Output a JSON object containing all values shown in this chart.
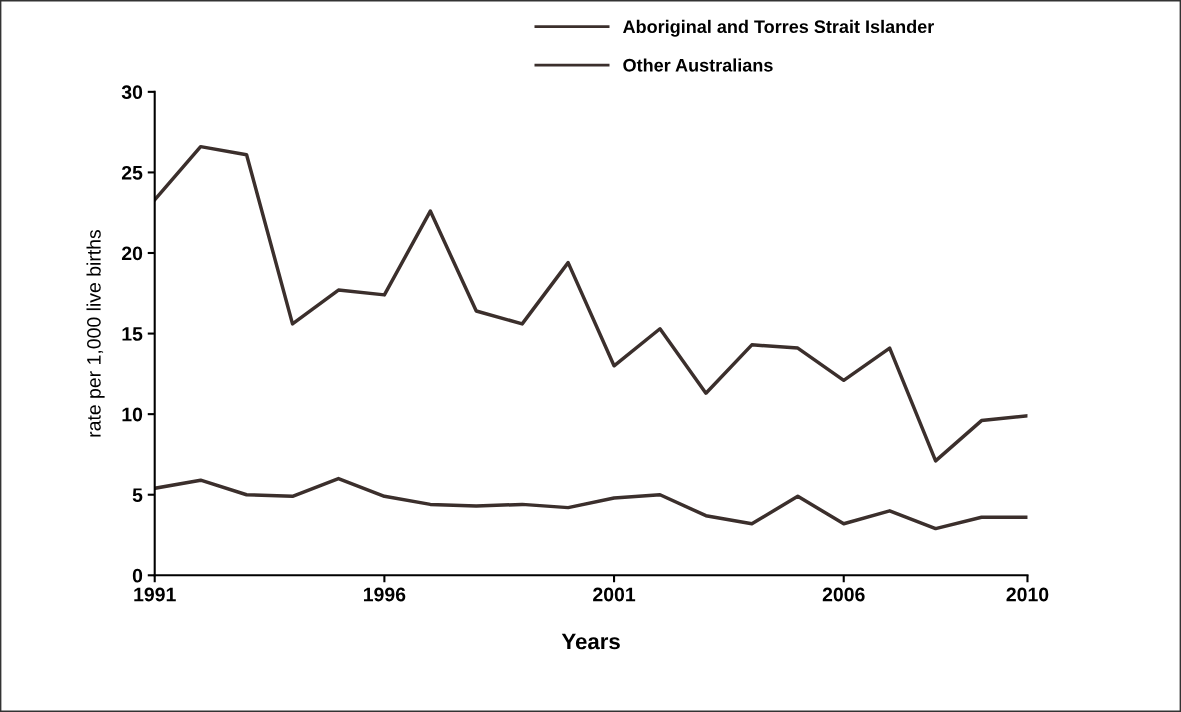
{
  "chart_data": {
    "type": "line",
    "xlabel": "Years",
    "ylabel": "rate per 1,000 live births",
    "x": [
      1991,
      1992,
      1993,
      1994,
      1995,
      1996,
      1997,
      1998,
      1999,
      2000,
      2001,
      2002,
      2003,
      2004,
      2005,
      2006,
      2007,
      2008,
      2009,
      2010
    ],
    "series": [
      {
        "name": "Aboriginal and Torres Strait Islander",
        "color": "#3b2f2c",
        "values": [
          23.3,
          26.6,
          26.1,
          15.6,
          17.7,
          17.4,
          22.6,
          16.4,
          15.6,
          19.4,
          13.0,
          15.3,
          11.3,
          14.3,
          14.1,
          12.1,
          14.1,
          7.1,
          9.6,
          9.9
        ]
      },
      {
        "name": "Other Australians",
        "color": "#3b2f2c",
        "values": [
          5.4,
          5.9,
          5.0,
          4.9,
          6.0,
          4.9,
          4.4,
          4.3,
          4.4,
          4.2,
          4.8,
          5.0,
          3.7,
          3.2,
          4.9,
          3.2,
          4.0,
          2.9,
          3.6,
          3.6
        ]
      }
    ],
    "xlim": [
      1991,
      2010
    ],
    "xticks": [
      1991,
      1996,
      2001,
      2006,
      2010
    ],
    "ylim": [
      0,
      30
    ],
    "yticks": [
      0,
      5,
      10,
      15,
      20,
      25,
      30
    ],
    "grid": false,
    "legend": "top",
    "marker": "none",
    "line_style": "solid"
  }
}
